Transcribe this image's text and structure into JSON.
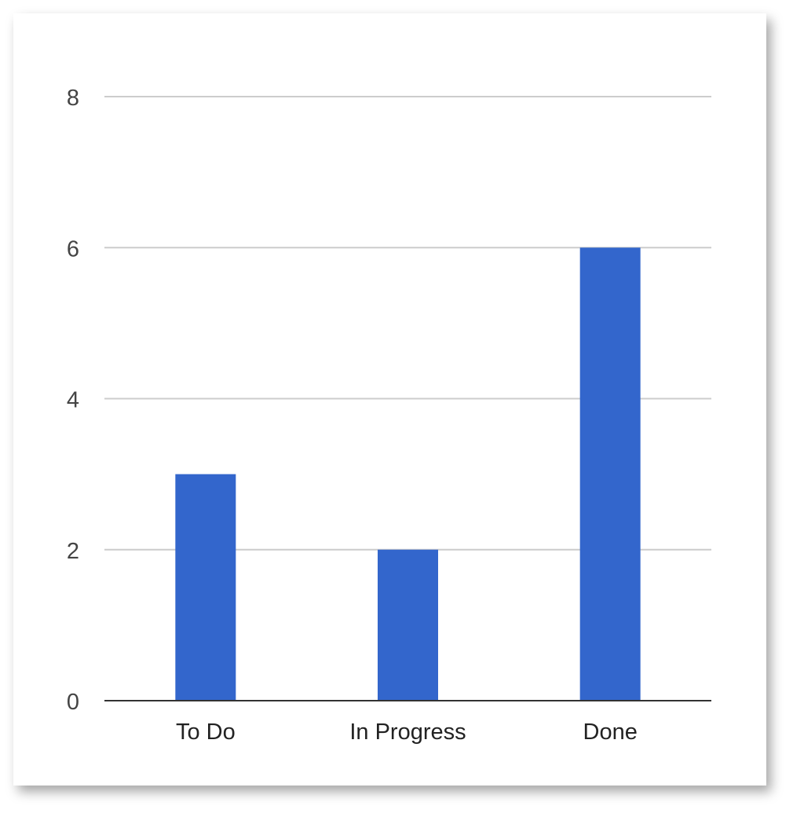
{
  "chart_data": {
    "type": "bar",
    "categories": [
      "To Do",
      "In Progress",
      "Done"
    ],
    "values": [
      3,
      2,
      6
    ],
    "title": "",
    "xlabel": "",
    "ylabel": "",
    "ylim": [
      0,
      8
    ],
    "yticks": [
      "0",
      "2",
      "4",
      "6",
      "8"
    ],
    "grid": true,
    "legend": "none",
    "colors": {
      "bar": "#3366cc",
      "grid": "#cccccc",
      "baseline": "#333333",
      "tick_text": "#444444",
      "category_text": "#222222"
    }
  }
}
